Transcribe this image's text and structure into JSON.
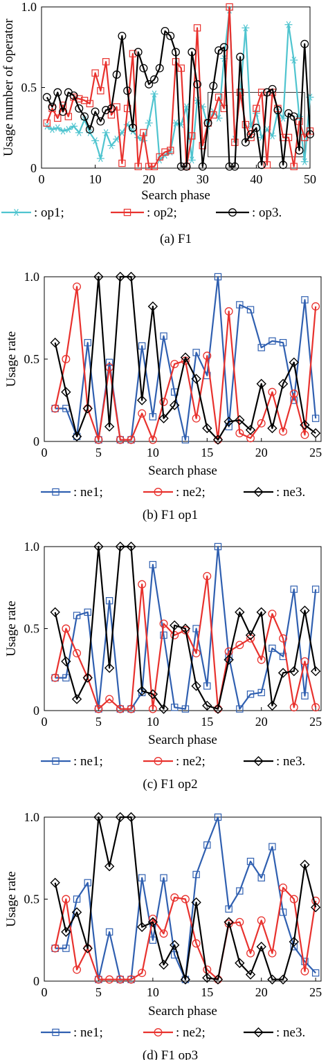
{
  "colors": {
    "cyan": "#4fc4cf",
    "red": "#e8312d",
    "black": "#000000",
    "blue": "#2f5fb0"
  },
  "chart_data": [
    {
      "type": "line",
      "caption": "(a) F1",
      "xlabel": "Search phase",
      "ylabel": "Usage number of operator",
      "xlim": [
        0,
        50
      ],
      "ylim": [
        0,
        1
      ],
      "xticks": [
        "0",
        "10",
        "20",
        "30",
        "40",
        "50"
      ],
      "yticks": [
        "0",
        "0.5",
        "1.0"
      ],
      "annotation": "rectangle around phases 31-49",
      "series": [
        {
          "name": ": op1;",
          "color": "cyan",
          "marker": "asterisk",
          "x": [
            1,
            2,
            3,
            4,
            5,
            6,
            7,
            8,
            9,
            10,
            11,
            12,
            13,
            14,
            15,
            16,
            17,
            18,
            19,
            20,
            21,
            22,
            23,
            24,
            25,
            26,
            27,
            28,
            29,
            30,
            31,
            32,
            33,
            34,
            35,
            36,
            37,
            38,
            39,
            40,
            41,
            42,
            43,
            44,
            45,
            46,
            47,
            48,
            49,
            50
          ],
          "values": [
            0.26,
            0.24,
            0.25,
            0.23,
            0.24,
            0.26,
            0.22,
            0.3,
            0.22,
            0.17,
            0.06,
            0.22,
            0.14,
            0.18,
            0.22,
            0.27,
            0.23,
            0.19,
            0.17,
            0.28,
            0.46,
            0.05,
            0.08,
            0.1,
            0.28,
            0.27,
            0.38,
            0.05,
            0.42,
            0.38,
            0.26,
            0.35,
            0.31,
            0.68,
            0.98,
            0.18,
            0.45,
            0.87,
            0.26,
            0.34,
            0.19,
            0.24,
            0.2,
            0.35,
            0.31,
            0.89,
            0.67,
            0.32,
            0.04,
            0.44
          ]
        },
        {
          "name": ": op2;",
          "color": "red",
          "marker": "square",
          "x": [
            1,
            2,
            3,
            4,
            5,
            6,
            7,
            8,
            9,
            10,
            11,
            12,
            13,
            14,
            15,
            16,
            17,
            18,
            19,
            20,
            21,
            22,
            23,
            24,
            25,
            26,
            27,
            28,
            29,
            30,
            31,
            32,
            33,
            34,
            35,
            36,
            37,
            38,
            39,
            40,
            41,
            42,
            43,
            44,
            45,
            46,
            47,
            48,
            49,
            50
          ],
          "values": [
            0.28,
            0.37,
            0.31,
            0.39,
            0.32,
            0.44,
            0.43,
            0.42,
            0.4,
            0.59,
            0.48,
            0.66,
            0.33,
            0.38,
            0.03,
            0.37,
            0.71,
            0.01,
            0.22,
            0.01,
            0.01,
            0.07,
            0.1,
            0.11,
            0.66,
            0.62,
            0.01,
            0.2,
            0.87,
            0.14,
            0.28,
            0.33,
            0.44,
            0.37,
            1.0,
            0.16,
            0.47,
            0.27,
            0.19,
            0.37,
            0.47,
            0.02,
            0.47,
            0.37,
            0.19,
            0.19,
            0.01,
            0.29,
            0.19,
            0.23
          ]
        },
        {
          "name": ": op3.",
          "color": "black",
          "marker": "circle",
          "x": [
            1,
            2,
            3,
            4,
            5,
            6,
            7,
            8,
            9,
            10,
            11,
            12,
            13,
            14,
            15,
            16,
            17,
            18,
            19,
            20,
            21,
            22,
            23,
            24,
            25,
            26,
            27,
            28,
            29,
            30,
            31,
            32,
            33,
            34,
            35,
            36,
            37,
            38,
            39,
            40,
            41,
            42,
            43,
            44,
            45,
            46,
            47,
            48,
            49,
            50
          ],
          "values": [
            0.44,
            0.38,
            0.47,
            0.35,
            0.47,
            0.45,
            0.37,
            0.32,
            0.24,
            0.35,
            0.29,
            0.36,
            0.37,
            0.58,
            0.82,
            0.48,
            0.25,
            0.72,
            0.62,
            0.52,
            0.55,
            0.62,
            0.85,
            0.82,
            0.72,
            0.01,
            0.01,
            0.72,
            0.52,
            0.01,
            0.28,
            0.51,
            0.73,
            0.75,
            0.01,
            0.01,
            0.69,
            0.16,
            0.21,
            0.25,
            0.02,
            0.47,
            0.49,
            0.36,
            0.02,
            0.34,
            0.32,
            0.11,
            0.77,
            0.21
          ]
        }
      ]
    },
    {
      "type": "line",
      "caption": "(b) F1 op1",
      "xlabel": "Search phase",
      "ylabel": "Usage rate",
      "xlim": [
        0,
        25.5
      ],
      "ylim": [
        0,
        1
      ],
      "xticks": [
        "0",
        "5",
        "10",
        "15",
        "20",
        "25"
      ],
      "yticks": [
        "0",
        "0.5",
        "1.0"
      ],
      "series": [
        {
          "name": ": ne1;",
          "color": "blue",
          "marker": "square",
          "x": [
            1,
            2,
            3,
            4,
            5,
            6,
            7,
            8,
            9,
            10,
            11,
            12,
            13,
            14,
            15,
            16,
            17,
            18,
            19,
            20,
            21,
            22,
            23,
            24,
            25
          ],
          "values": [
            0.2,
            0.2,
            0.03,
            0.6,
            0.01,
            0.48,
            0.01,
            0.01,
            0.58,
            0.15,
            0.64,
            0.3,
            0.01,
            0.54,
            0.4,
            1.0,
            0.09,
            0.83,
            0.8,
            0.57,
            0.61,
            0.6,
            0.25,
            0.86,
            0.14
          ]
        },
        {
          "name": ": ne2;",
          "color": "red",
          "marker": "circle",
          "x": [
            1,
            2,
            3,
            4,
            5,
            6,
            7,
            8,
            9,
            10,
            11,
            12,
            13,
            14,
            15,
            16,
            17,
            18,
            19,
            20,
            21,
            22,
            23,
            24,
            25
          ],
          "values": [
            0.2,
            0.5,
            0.94,
            0.2,
            0.01,
            0.45,
            0.01,
            0.01,
            0.17,
            0.01,
            0.24,
            0.47,
            0.49,
            0.14,
            0.52,
            0.01,
            0.79,
            0.05,
            0.02,
            0.11,
            0.3,
            0.06,
            0.29,
            0.04,
            0.82
          ]
        },
        {
          "name": ": ne3.",
          "color": "black",
          "marker": "diamond",
          "x": [
            1,
            2,
            3,
            4,
            5,
            6,
            7,
            8,
            9,
            10,
            11,
            12,
            13,
            14,
            15,
            16,
            17,
            18,
            19,
            20,
            21,
            22,
            23,
            24,
            25
          ],
          "values": [
            0.6,
            0.3,
            0.03,
            0.2,
            1.0,
            0.09,
            1.0,
            1.0,
            0.25,
            0.82,
            0.14,
            0.22,
            0.51,
            0.38,
            0.08,
            0.01,
            0.12,
            0.13,
            0.07,
            0.35,
            0.08,
            0.35,
            0.48,
            0.1,
            0.05
          ]
        }
      ]
    },
    {
      "type": "line",
      "caption": "(c) F1 op2",
      "xlabel": "Search phase",
      "ylabel": "Usage rate",
      "xlim": [
        0,
        25.5
      ],
      "ylim": [
        0,
        1
      ],
      "xticks": [
        "0",
        "5",
        "10",
        "15",
        "20",
        "25"
      ],
      "yticks": [
        "0",
        "0.5",
        "1.0"
      ],
      "series": [
        {
          "name": ": ne1;",
          "color": "blue",
          "marker": "square",
          "x": [
            1,
            2,
            3,
            4,
            5,
            6,
            7,
            8,
            9,
            10,
            11,
            12,
            13,
            14,
            15,
            16,
            17,
            18,
            19,
            20,
            21,
            22,
            23,
            24,
            25
          ],
          "values": [
            0.2,
            0.2,
            0.58,
            0.6,
            0.01,
            0.67,
            0.01,
            0.01,
            0.11,
            0.89,
            0.46,
            0.02,
            0.01,
            0.5,
            0.15,
            1.0,
            0.33,
            0.01,
            0.1,
            0.11,
            0.38,
            0.33,
            0.74,
            0.09,
            0.74
          ]
        },
        {
          "name": ": ne2;",
          "color": "red",
          "marker": "circle",
          "x": [
            1,
            2,
            3,
            4,
            5,
            6,
            7,
            8,
            9,
            10,
            11,
            12,
            13,
            14,
            15,
            16,
            17,
            18,
            19,
            20,
            21,
            22,
            23,
            24,
            25
          ],
          "values": [
            0.2,
            0.5,
            0.35,
            0.2,
            0.01,
            0.07,
            0.01,
            0.01,
            0.77,
            0.01,
            0.53,
            0.46,
            0.49,
            0.35,
            0.82,
            0.01,
            0.36,
            0.4,
            0.44,
            0.31,
            0.59,
            0.44,
            0.02,
            0.3,
            0.02
          ]
        },
        {
          "name": ": ne3.",
          "color": "black",
          "marker": "diamond",
          "x": [
            1,
            2,
            3,
            4,
            5,
            6,
            7,
            8,
            9,
            10,
            11,
            12,
            13,
            14,
            15,
            16,
            17,
            18,
            19,
            20,
            21,
            22,
            23,
            24,
            25
          ],
          "values": [
            0.6,
            0.3,
            0.07,
            0.2,
            1.0,
            0.26,
            1.0,
            1.0,
            0.12,
            0.1,
            0.01,
            0.52,
            0.5,
            0.15,
            0.03,
            0.01,
            0.31,
            0.6,
            0.46,
            0.6,
            0.03,
            0.23,
            0.24,
            0.61,
            0.24
          ]
        }
      ]
    },
    {
      "type": "line",
      "caption": "(d) F1 op3",
      "xlabel": "Search phase",
      "ylabel": "Usage rate",
      "xlim": [
        0,
        25.5
      ],
      "ylim": [
        0,
        1
      ],
      "xticks": [
        "0",
        "5",
        "10",
        "15",
        "20",
        "25"
      ],
      "yticks": [
        "0",
        "0.5",
        "1.0"
      ],
      "series": [
        {
          "name": ": ne1;",
          "color": "blue",
          "marker": "square",
          "x": [
            1,
            2,
            3,
            4,
            5,
            6,
            7,
            8,
            9,
            10,
            11,
            12,
            13,
            14,
            15,
            16,
            17,
            18,
            19,
            20,
            21,
            22,
            23,
            24,
            25
          ],
          "values": [
            0.2,
            0.2,
            0.5,
            0.6,
            0.01,
            0.3,
            0.01,
            0.01,
            0.63,
            0.25,
            0.63,
            0.16,
            0.01,
            0.65,
            0.83,
            1.0,
            0.44,
            0.55,
            0.73,
            0.63,
            0.82,
            0.42,
            0.21,
            0.12,
            0.05
          ]
        },
        {
          "name": ": ne2;",
          "color": "red",
          "marker": "circle",
          "x": [
            1,
            2,
            3,
            4,
            5,
            6,
            7,
            8,
            9,
            10,
            11,
            12,
            13,
            14,
            15,
            16,
            17,
            18,
            19,
            20,
            21,
            22,
            23,
            24,
            25
          ],
          "values": [
            0.2,
            0.5,
            0.07,
            0.2,
            0.01,
            0.01,
            0.01,
            0.01,
            0.05,
            0.38,
            0.29,
            0.51,
            0.5,
            0.23,
            0.07,
            0.01,
            0.35,
            0.36,
            0.17,
            0.37,
            0.17,
            0.57,
            0.5,
            0.06,
            0.49
          ]
        },
        {
          "name": ": ne3.",
          "color": "black",
          "marker": "diamond",
          "x": [
            1,
            2,
            3,
            4,
            5,
            6,
            7,
            8,
            9,
            10,
            11,
            12,
            13,
            14,
            15,
            16,
            17,
            18,
            19,
            20,
            21,
            22,
            23,
            24,
            25
          ],
          "values": [
            0.6,
            0.3,
            0.42,
            0.2,
            1.0,
            0.7,
            1.0,
            1.0,
            0.33,
            0.36,
            0.1,
            0.22,
            0.01,
            0.48,
            0.02,
            0.01,
            0.36,
            0.11,
            0.04,
            0.21,
            0.01,
            0.01,
            0.24,
            0.71,
            0.45
          ]
        }
      ]
    }
  ]
}
